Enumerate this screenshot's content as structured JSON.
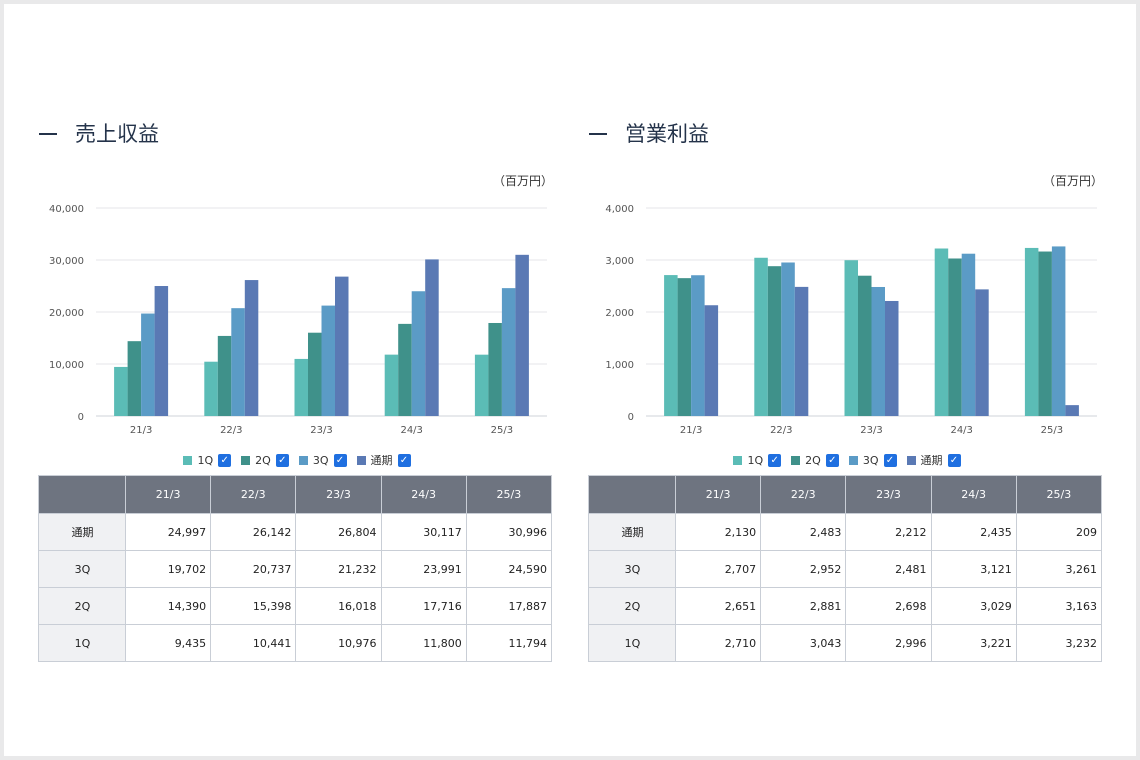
{
  "colors": {
    "q1": "#5bbcb6",
    "q2": "#3f918a",
    "q3": "#5b9bc6",
    "full": "#5a79b4"
  },
  "legend": {
    "items": [
      {
        "label": "1Q",
        "color": "#5bbcb6"
      },
      {
        "label": "2Q",
        "color": "#3f918a"
      },
      {
        "label": "3Q",
        "color": "#5b9bc6"
      },
      {
        "label": "通期",
        "color": "#5a79b4"
      }
    ]
  },
  "revenue": {
    "title": "売上収益",
    "unit": "（百万円）",
    "table": {
      "headers": [
        "21/3",
        "22/3",
        "23/3",
        "24/3",
        "25/3"
      ],
      "rows": [
        {
          "label": "通期",
          "values": [
            "24,997",
            "26,142",
            "26,804",
            "30,117",
            "30,996"
          ]
        },
        {
          "label": "3Q",
          "values": [
            "19,702",
            "20,737",
            "21,232",
            "23,991",
            "24,590"
          ]
        },
        {
          "label": "2Q",
          "values": [
            "14,390",
            "15,398",
            "16,018",
            "17,716",
            "17,887"
          ]
        },
        {
          "label": "1Q",
          "values": [
            "9,435",
            "10,441",
            "10,976",
            "11,800",
            "11,794"
          ]
        }
      ]
    }
  },
  "operating_income": {
    "title": "営業利益",
    "unit": "（百万円）",
    "table": {
      "headers": [
        "21/3",
        "22/3",
        "23/3",
        "24/3",
        "25/3"
      ],
      "rows": [
        {
          "label": "通期",
          "values": [
            "2,130",
            "2,483",
            "2,212",
            "2,435",
            "209"
          ]
        },
        {
          "label": "3Q",
          "values": [
            "2,707",
            "2,952",
            "2,481",
            "3,121",
            "3,261"
          ]
        },
        {
          "label": "2Q",
          "values": [
            "2,651",
            "2,881",
            "2,698",
            "3,029",
            "3,163"
          ]
        },
        {
          "label": "1Q",
          "values": [
            "2,710",
            "3,043",
            "2,996",
            "3,221",
            "3,232"
          ]
        }
      ]
    }
  },
  "chart_data": [
    {
      "type": "bar",
      "title": "売上収益",
      "ylabel": "（百万円）",
      "categories": [
        "21/3",
        "22/3",
        "23/3",
        "24/3",
        "25/3"
      ],
      "ylim": [
        0,
        40000
      ],
      "yticks": [
        0,
        10000,
        20000,
        30000,
        40000
      ],
      "ytick_labels": [
        "0",
        "10,000",
        "20,000",
        "30,000",
        "40,000"
      ],
      "series": [
        {
          "name": "1Q",
          "values": [
            9435,
            10441,
            10976,
            11800,
            11794
          ]
        },
        {
          "name": "2Q",
          "values": [
            14390,
            15398,
            16018,
            17716,
            17887
          ]
        },
        {
          "name": "3Q",
          "values": [
            19702,
            20737,
            21232,
            23991,
            24590
          ]
        },
        {
          "name": "通期",
          "values": [
            24997,
            26142,
            26804,
            30117,
            30996
          ]
        }
      ]
    },
    {
      "type": "bar",
      "title": "営業利益",
      "ylabel": "（百万円）",
      "categories": [
        "21/3",
        "22/3",
        "23/3",
        "24/3",
        "25/3"
      ],
      "ylim": [
        0,
        4000
      ],
      "yticks": [
        0,
        1000,
        2000,
        3000,
        4000
      ],
      "ytick_labels": [
        "0",
        "1,000",
        "2,000",
        "3,000",
        "4,000"
      ],
      "series": [
        {
          "name": "1Q",
          "values": [
            2710,
            3043,
            2996,
            3221,
            3232
          ]
        },
        {
          "name": "2Q",
          "values": [
            2651,
            2881,
            2698,
            3029,
            3163
          ]
        },
        {
          "name": "3Q",
          "values": [
            2707,
            2952,
            2481,
            3121,
            3261
          ]
        },
        {
          "name": "通期",
          "values": [
            2130,
            2483,
            2212,
            2435,
            209
          ]
        }
      ]
    }
  ]
}
